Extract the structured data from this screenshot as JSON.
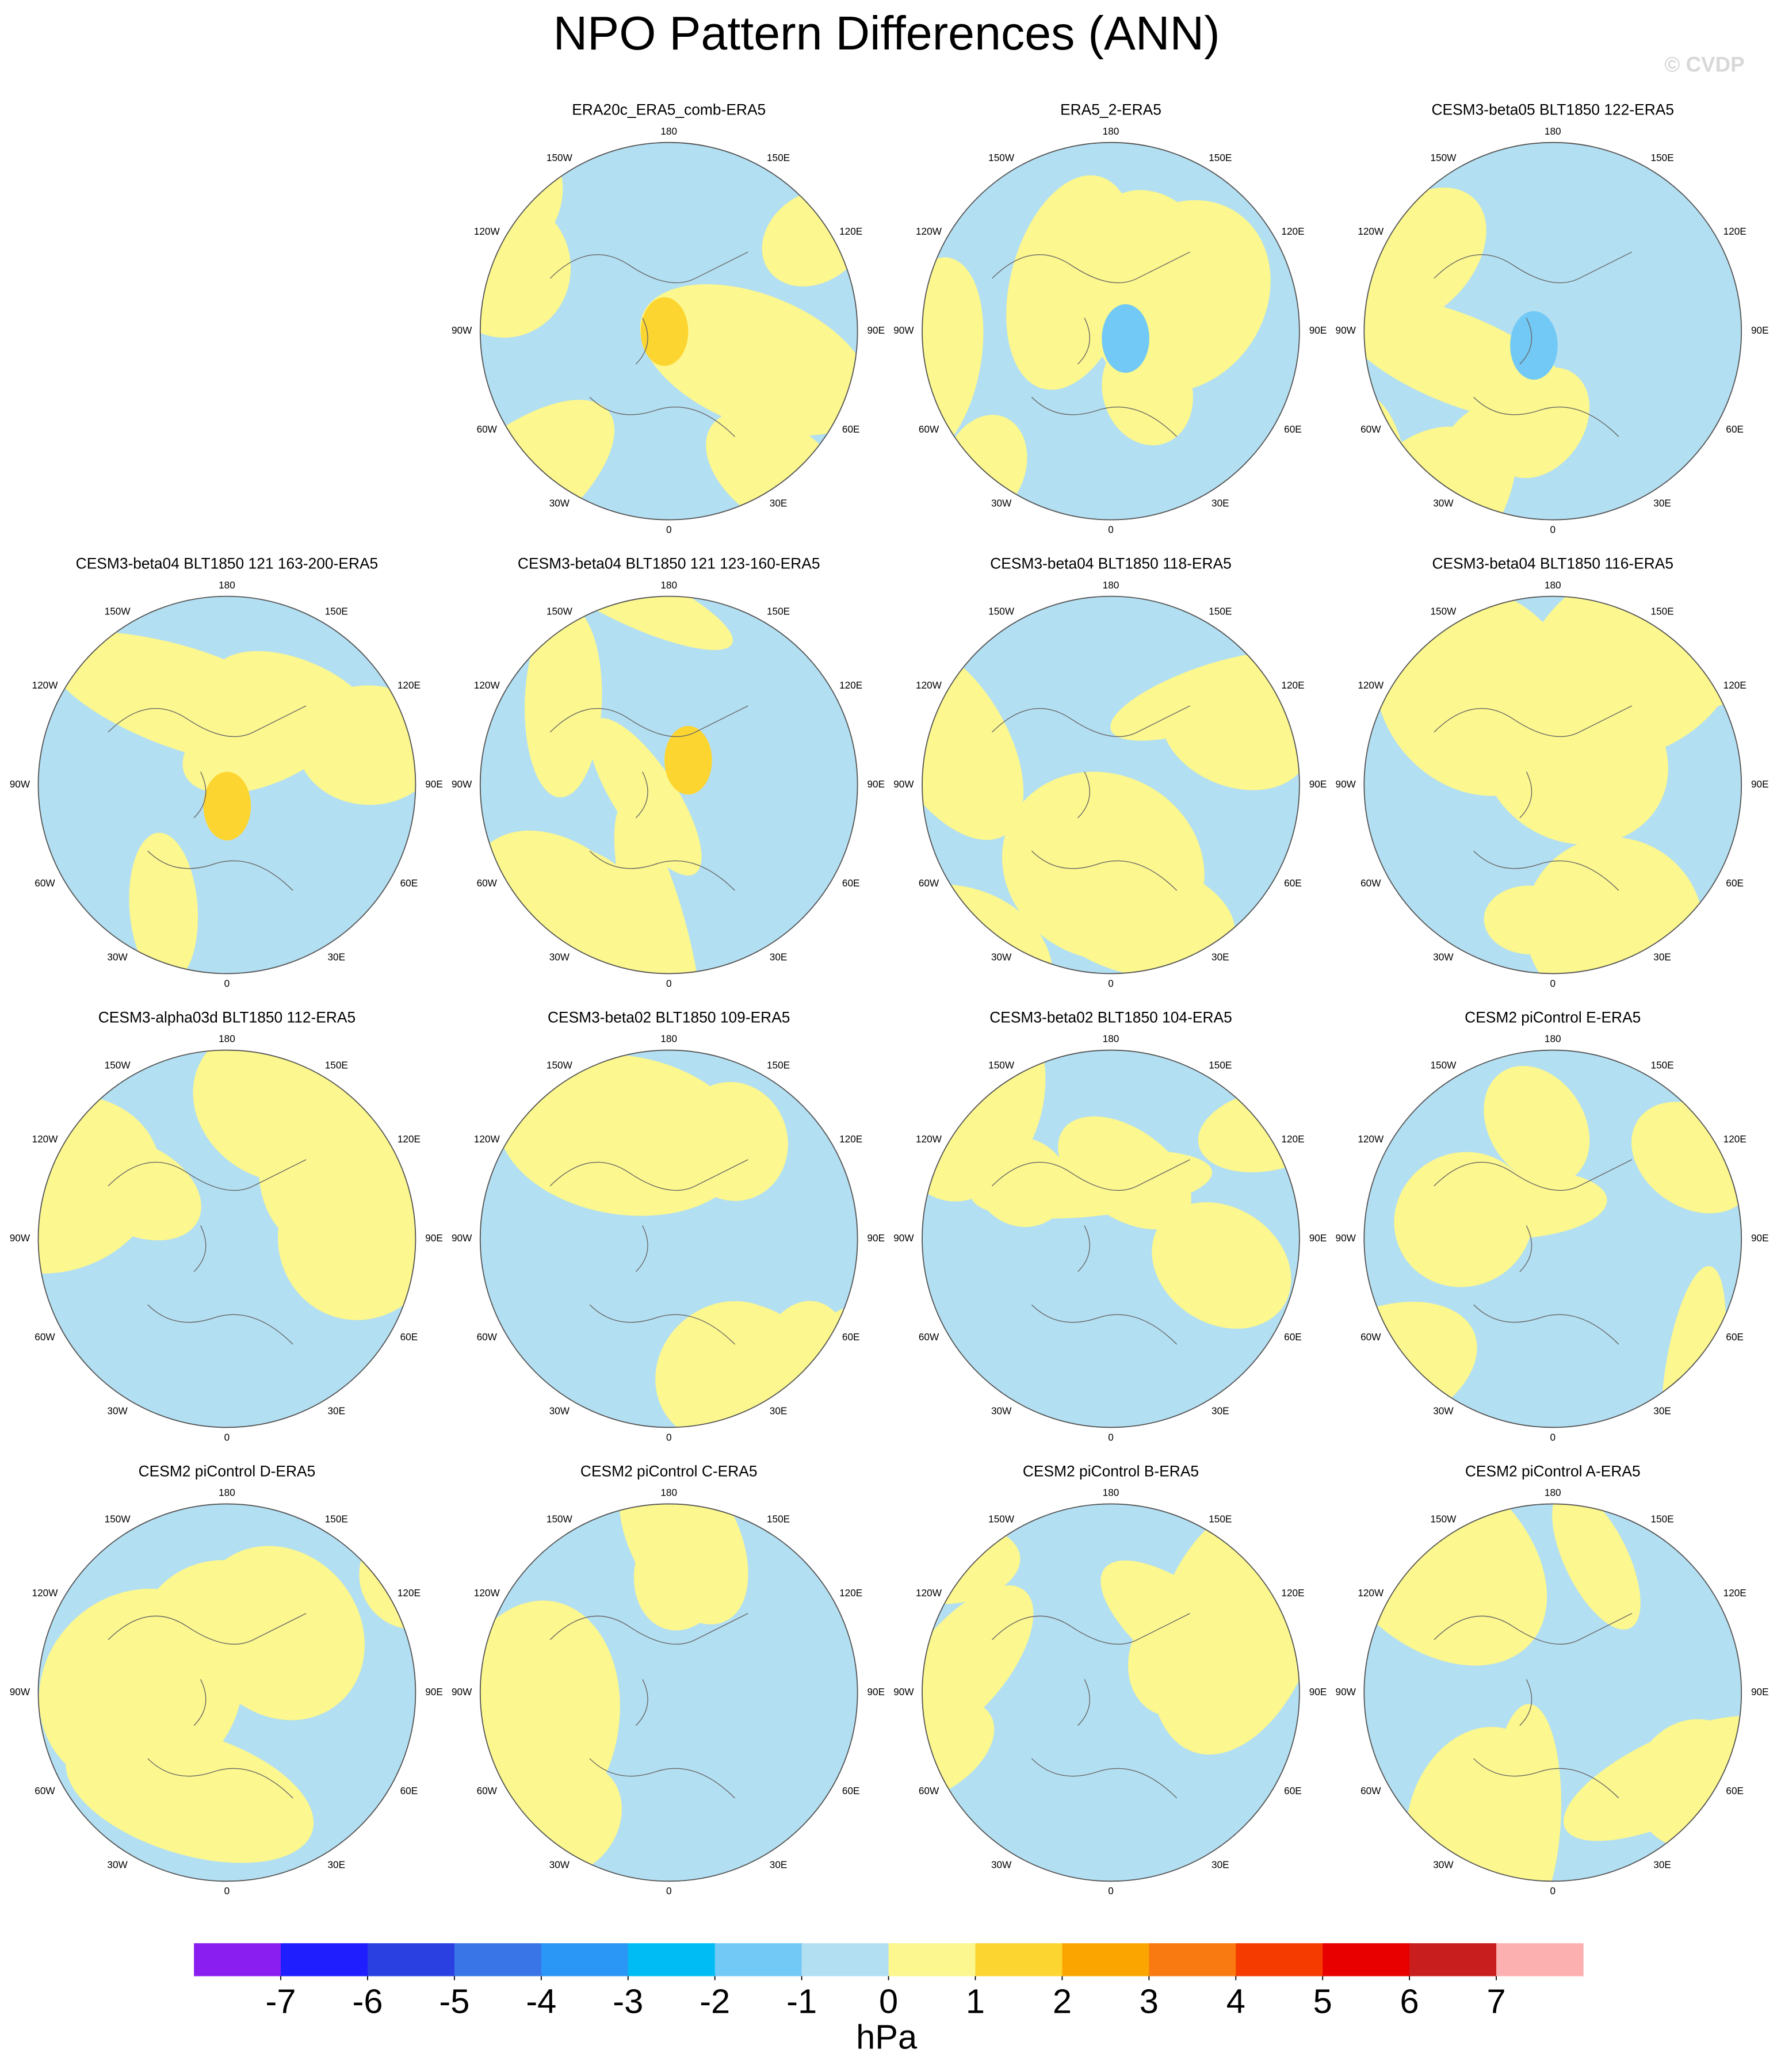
{
  "title": "NPO Pattern Differences (ANN)",
  "watermark": "© CVDP",
  "lon_labels": [
    "180",
    "150E",
    "120E",
    "90E",
    "60E",
    "30E",
    "0",
    "30W",
    "60W",
    "90W",
    "120W",
    "150W"
  ],
  "panels": [
    {
      "title": "ERA20c_ERA5_comb-ERA5"
    },
    {
      "title": "ERA5_2-ERA5"
    },
    {
      "title": "CESM3-beta05 BLT1850 122-ERA5"
    },
    {
      "title": "CESM3-beta04 BLT1850 121 163-200-ERA5"
    },
    {
      "title": "CESM3-beta04 BLT1850 121 123-160-ERA5"
    },
    {
      "title": "CESM3-beta04 BLT1850 118-ERA5"
    },
    {
      "title": "CESM3-beta04 BLT1850 116-ERA5"
    },
    {
      "title": "CESM3-alpha03d BLT1850 112-ERA5"
    },
    {
      "title": "CESM3-beta02 BLT1850 109-ERA5"
    },
    {
      "title": "CESM3-beta02 BLT1850 104-ERA5"
    },
    {
      "title": "CESM2 piControl E-ERA5"
    },
    {
      "title": "CESM2 piControl D-ERA5"
    },
    {
      "title": "CESM2 piControl C-ERA5"
    },
    {
      "title": "CESM2 piControl B-ERA5"
    },
    {
      "title": "CESM2 piControl A-ERA5"
    }
  ],
  "colorbar": {
    "ticks": [
      -7,
      -6,
      -5,
      -4,
      -3,
      -2,
      -1,
      0,
      1,
      2,
      3,
      4,
      5,
      6,
      7
    ],
    "colors": [
      "#8a1ef0",
      "#1e1eff",
      "#2a40e0",
      "#3a75e8",
      "#2a96f5",
      "#00bcf5",
      "#72c9f5",
      "#b3dff2",
      "#fcf78e",
      "#fdd530",
      "#fba600",
      "#f87a10",
      "#f53b00",
      "#e80000",
      "#c81e1e",
      "#fdb0b0"
    ],
    "label": "hPa"
  }
}
